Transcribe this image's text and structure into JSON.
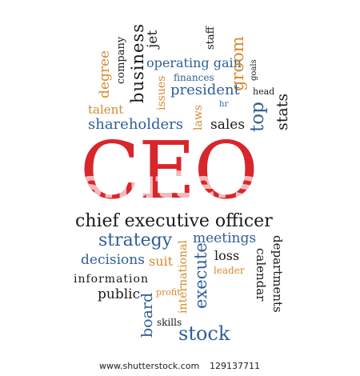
{
  "cloud": {
    "business": "business",
    "jet": "jet",
    "company": "company",
    "staff": "staff",
    "degree": "degree",
    "operating_gain": "operating gain",
    "goals": "goals",
    "finances": "finances",
    "issues": "issues",
    "groom": "groom",
    "president": "president",
    "head": "head",
    "talent": "talent",
    "laws": "laws",
    "hr": "hr",
    "shareholders": "shareholders",
    "sales": "sales",
    "top": "top",
    "stats": "stats",
    "ceo": "CEO",
    "chief_executive_officer": "chief executive officer",
    "strategy": "strategy",
    "meetings": "meetings",
    "departments": "departments",
    "decisions": "decisions",
    "suit": "suit",
    "loss": "loss",
    "international": "international",
    "execute": "execute",
    "leader": "leader",
    "information": "information",
    "calendar": "calendar",
    "public": "public",
    "profit": "profit",
    "board": "board",
    "skills": "skills",
    "stock": "stock"
  },
  "watermark": "shutterstock",
  "footer": {
    "site": "www.shutterstock.com",
    "image_id": "129137711"
  },
  "colors": {
    "black": "#1a1a1a",
    "blue": "#2f5f96",
    "orange": "#d58a2f",
    "red": "#d8262b"
  }
}
